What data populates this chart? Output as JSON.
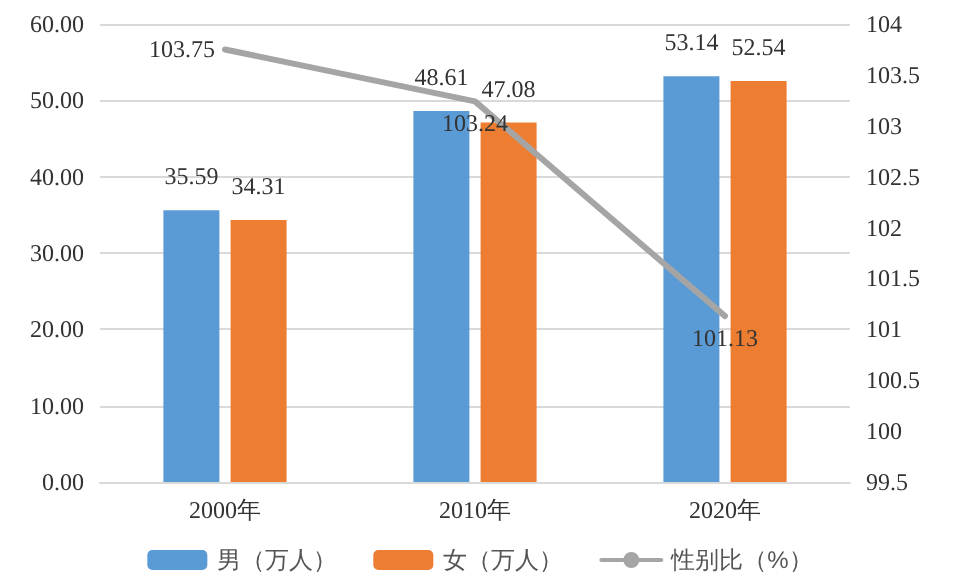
{
  "chart_data": {
    "type": "bar",
    "categories": [
      "2000年",
      "2010年",
      "2020年"
    ],
    "series": [
      {
        "name": "男（万人）",
        "color": "#5b9bd5",
        "values": [
          35.59,
          48.61,
          53.14
        ]
      },
      {
        "name": "女（万人）",
        "color": "#ed7d31",
        "values": [
          34.31,
          47.08,
          52.54
        ]
      },
      {
        "name": "性别比（%）",
        "type": "line",
        "axis": "y2",
        "color": "#a5a5a5",
        "values": [
          103.75,
          103.24,
          101.13
        ]
      }
    ],
    "ylim": [
      0,
      60
    ],
    "yticks": [
      {
        "value": 0,
        "label": "0.00"
      },
      {
        "value": 10,
        "label": "10.00"
      },
      {
        "value": 20,
        "label": "20.00"
      },
      {
        "value": 30,
        "label": "30.00"
      },
      {
        "value": 40,
        "label": "40.00"
      },
      {
        "value": 50,
        "label": "50.00"
      },
      {
        "value": 60,
        "label": "60.00"
      }
    ],
    "y2lim": [
      99.5,
      104
    ],
    "y2ticks": [
      99.5,
      100,
      100.5,
      101,
      101.5,
      102,
      102.5,
      103,
      103.5,
      104
    ],
    "grid": "y",
    "legend": "bottom",
    "data_labels": true,
    "marker": "none",
    "line_style": "solid"
  }
}
